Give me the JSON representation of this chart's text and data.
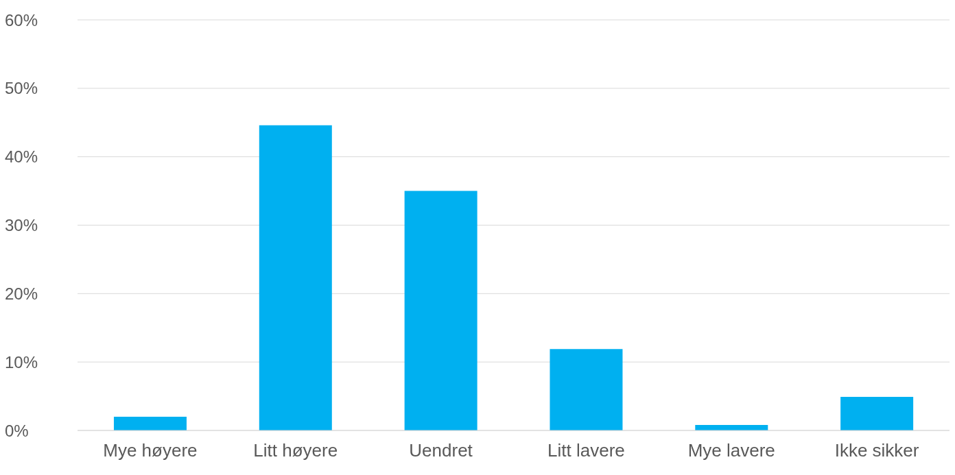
{
  "chart_data": {
    "type": "bar",
    "categories": [
      "Mye høyere",
      "Litt høyere",
      "Uendret",
      "Litt lavere",
      "Mye lavere",
      "Ikke sikker"
    ],
    "values": [
      2.0,
      44.6,
      35.0,
      11.9,
      0.8,
      4.9
    ],
    "color": "#00b0f0",
    "ylim": [
      0,
      60
    ],
    "yticks": [
      {
        "value": 0,
        "label": "0%"
      },
      {
        "value": 10,
        "label": "10%"
      },
      {
        "value": 20,
        "label": "20%"
      },
      {
        "value": 30,
        "label": "30%"
      },
      {
        "value": 40,
        "label": "40%"
      },
      {
        "value": 50,
        "label": "50%"
      },
      {
        "value": 60,
        "label": "60%"
      }
    ],
    "grid": "y"
  }
}
